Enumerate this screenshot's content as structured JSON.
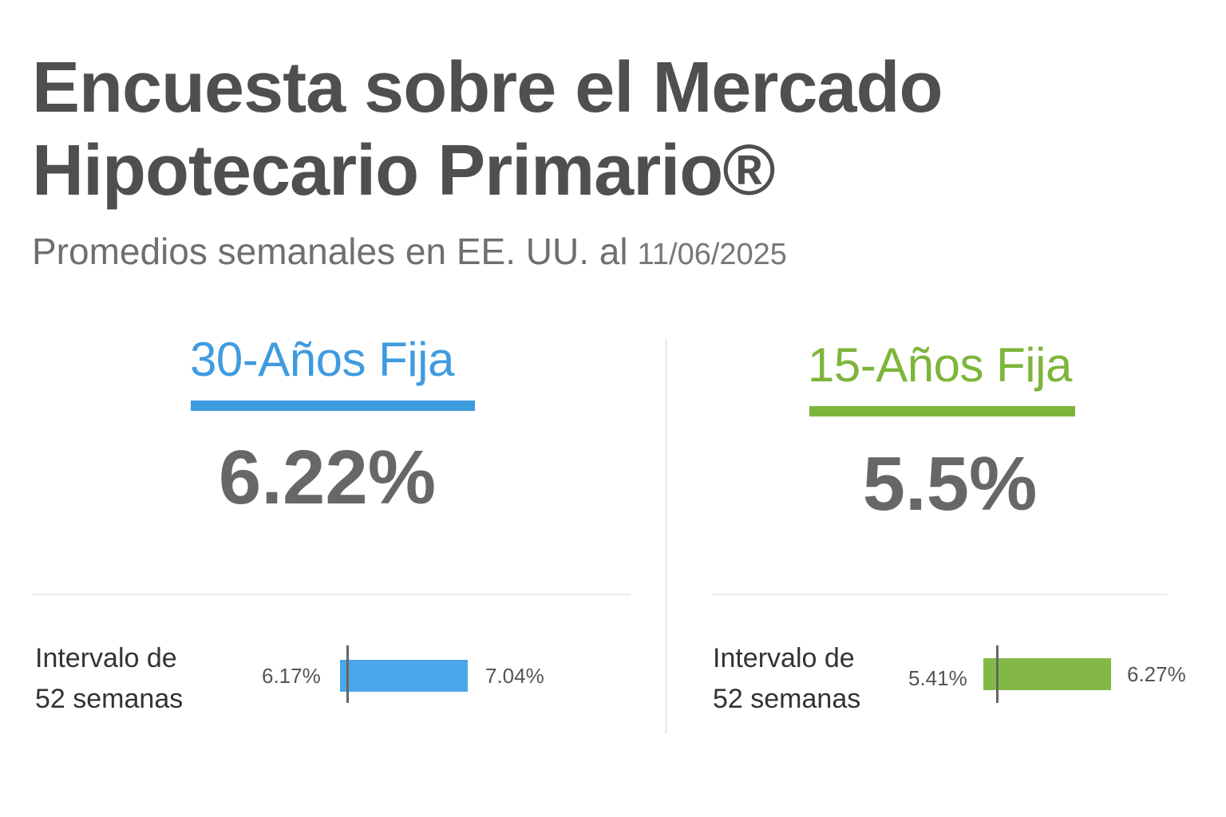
{
  "header": {
    "title_line1": "Encuesta sobre el Mercado",
    "title_line2": "Hipotecario Primario®",
    "subtitle": "Promedios semanales en EE. UU. al",
    "date": "11/06/2025"
  },
  "products": [
    {
      "name": "30-Años Fija",
      "rate": "6.22%",
      "color": "#3f9be0",
      "bar_color": "#4aa6ea",
      "range_label_line1": "Intervalo de",
      "range_label_line2": "52 semanas",
      "range_low": "6.17%",
      "range_high": "7.04%"
    },
    {
      "name": "15-Años Fija",
      "rate": "5.5%",
      "color": "#7db53a",
      "bar_color": "#84b846",
      "range_label_line1": "Intervalo de",
      "range_label_line2": "52 semanas",
      "range_low": "5.41%",
      "range_high": "6.27%"
    }
  ],
  "chart_data": {
    "type": "bar",
    "title": "Encuesta sobre el Mercado Hipotecario Primario®",
    "subtitle": "Promedios semanales en EE. UU. al 11/06/2025",
    "categories": [
      "30-Años Fija",
      "15-Años Fija"
    ],
    "series": [
      {
        "values": [
          6.22,
          5.5
        ]
      }
    ],
    "ranges_52_week": [
      {
        "category": "30-Años Fija",
        "low": 6.17,
        "high": 7.04,
        "current": 6.22
      },
      {
        "category": "15-Años Fija",
        "low": 5.41,
        "high": 6.27,
        "current": 5.5
      }
    ],
    "unit": "%",
    "legend": "none",
    "grid": false
  }
}
